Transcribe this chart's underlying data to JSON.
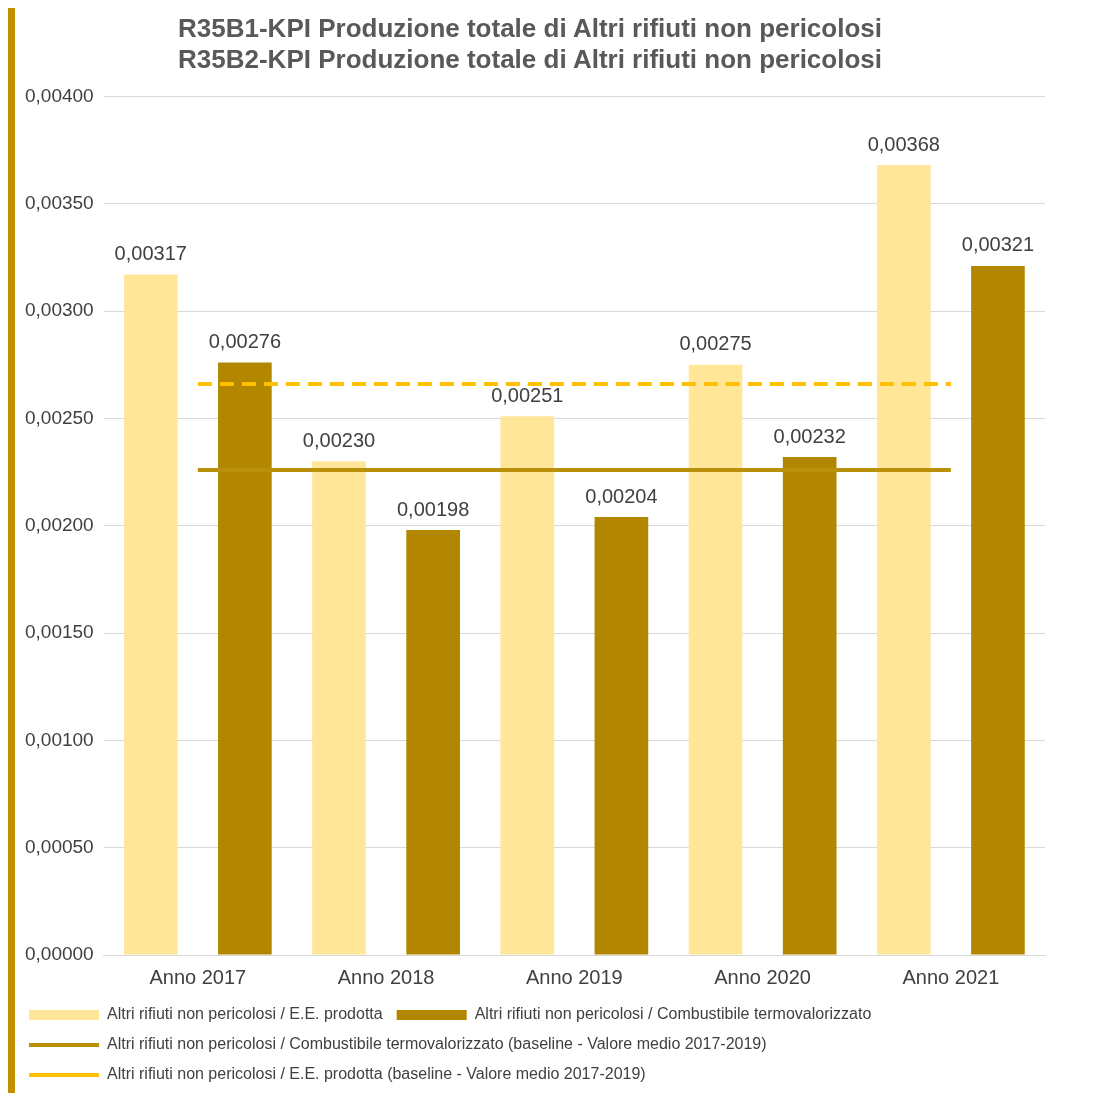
{
  "chart_data": {
    "type": "bar",
    "title": "R35B1-KPI Produzione totale di Altri rifiuti non pericolosi",
    "subtitle": "R35B2-KPI Produzione totale di Altri rifiuti non pericolosi",
    "categories": [
      "Anno 2017",
      "Anno 2018",
      "Anno 2019",
      "Anno 2020",
      "Anno 2021"
    ],
    "series": [
      {
        "name": "Altri rifiuti non pericolosi / E.E. prodotta",
        "color": "#ffe699",
        "values": [
          0.00317,
          0.0023,
          0.00251,
          0.00275,
          0.00368
        ],
        "value_labels": [
          "0,00317",
          "0,00230",
          "0,00251",
          "0,00275",
          "0,00368"
        ]
      },
      {
        "name": "Altri rifiuti non pericolosi / Combustibile termovalorizzato",
        "color": "#b38600",
        "values": [
          0.00276,
          0.00198,
          0.00204,
          0.00232,
          0.00321
        ],
        "value_labels": [
          "0,00276",
          "0,00198",
          "0,00204",
          "0,00232",
          "0,00321"
        ]
      },
      {
        "name": "Altri rifiuti non pericolosi / Combustibile termovalorizzato (baseline - Valore medio 2017-2019)",
        "type": "line",
        "color": "#b8900a",
        "line_style": "solid",
        "values": [
          0.00226,
          0.00226,
          0.00226,
          0.00226,
          0.00226
        ]
      },
      {
        "name": "Altri rifiuti non pericolosi / E.E. prodotta (baseline - Valore medio 2017-2019)",
        "type": "line",
        "color": "#ffc000",
        "line_style": "dashed",
        "values": [
          0.00266,
          0.00266,
          0.00266,
          0.00266,
          0.00266
        ]
      }
    ],
    "ylim": [
      0,
      0.004
    ],
    "yticks": [
      {
        "value": 0,
        "label": "0,00000"
      },
      {
        "value": 0.0005,
        "label": "0,00050"
      },
      {
        "value": 0.001,
        "label": "0,00100"
      },
      {
        "value": 0.0015,
        "label": "0,00150"
      },
      {
        "value": 0.002,
        "label": "0,00200"
      },
      {
        "value": 0.0025,
        "label": "0,00250"
      },
      {
        "value": 0.003,
        "label": "0,00300"
      },
      {
        "value": 0.0035,
        "label": "0,00350"
      },
      {
        "value": 0.004,
        "label": "0,00400"
      }
    ],
    "grid": "y",
    "legend": "bottom",
    "marker": "none"
  }
}
